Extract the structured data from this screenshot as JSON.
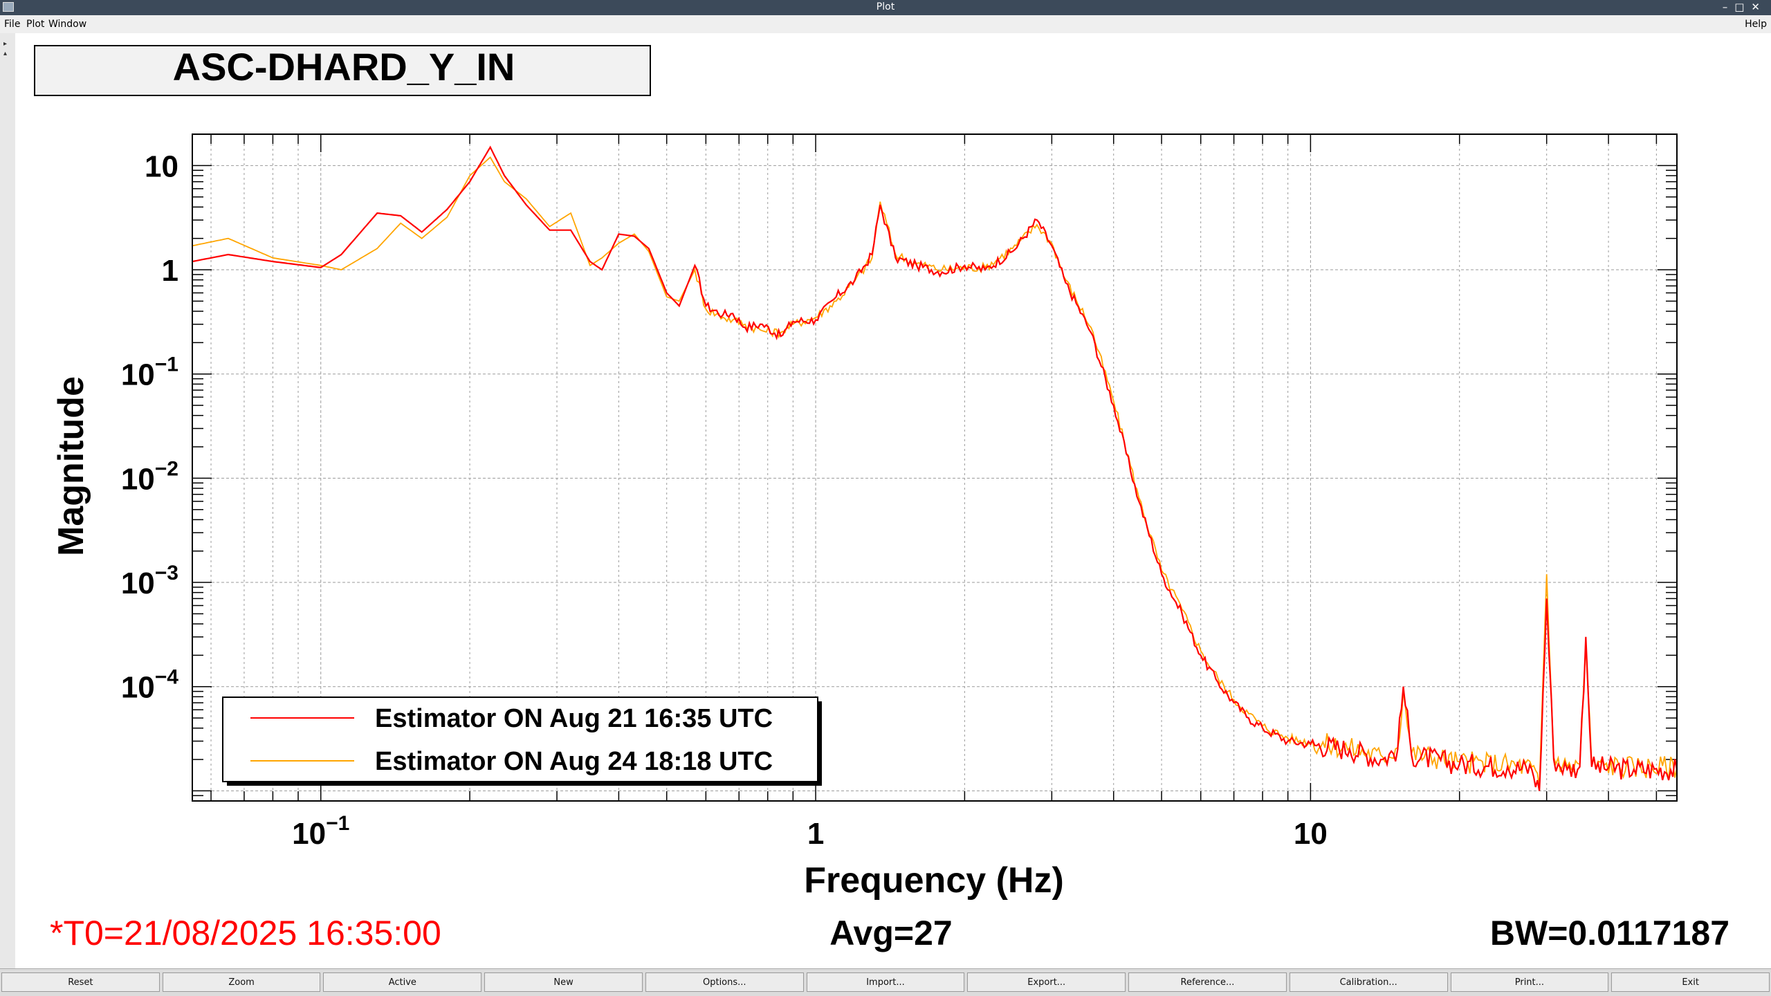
{
  "window": {
    "title": "Plot",
    "controls": "–□✕"
  },
  "menu": {
    "file": "File",
    "plot": "Plot",
    "window": "Window",
    "help": "Help"
  },
  "footer": {
    "buttons": [
      "Reset",
      "Zoom",
      "Active",
      "New",
      "Options...",
      "Import...",
      "Export...",
      "Reference...",
      "Calibration...",
      "Print...",
      "Exit"
    ]
  },
  "colors": {
    "series_red": "#ff0000",
    "series_orange": "#ffa500",
    "status_red": "#ff0000"
  },
  "chart_data": {
    "type": "line",
    "title": "ASC-DHARD_Y_IN",
    "xlabel": "Frequency (Hz)",
    "ylabel": "Magnitude",
    "xscale": "log",
    "yscale": "log",
    "xlim": [
      0.055,
      55
    ],
    "ylim": [
      8e-06,
      20
    ],
    "grid": true,
    "legend_position": "bottom-left",
    "x_ticks": [
      {
        "value": 0.1,
        "base": "10",
        "exp": "−1"
      },
      {
        "value": 1,
        "base": "1",
        "exp": ""
      },
      {
        "value": 10,
        "base": "10",
        "exp": ""
      }
    ],
    "y_ticks": [
      {
        "value": 10,
        "base": "10",
        "exp": ""
      },
      {
        "value": 1,
        "base": "1",
        "exp": ""
      },
      {
        "value": 0.1,
        "base": "10",
        "exp": "−1"
      },
      {
        "value": 0.01,
        "base": "10",
        "exp": "−2"
      },
      {
        "value": 0.001,
        "base": "10",
        "exp": "−3"
      },
      {
        "value": 0.0001,
        "base": "10",
        "exp": "−4"
      }
    ],
    "series": [
      {
        "name": "Estimator ON Aug 21 16:35 UTC",
        "color": "#ff0000",
        "x": [
          0.055,
          0.065,
          0.08,
          0.1,
          0.11,
          0.13,
          0.145,
          0.16,
          0.18,
          0.2,
          0.22,
          0.235,
          0.26,
          0.29,
          0.32,
          0.35,
          0.37,
          0.4,
          0.43,
          0.46,
          0.5,
          0.53,
          0.57,
          0.6,
          0.65,
          0.68,
          0.72,
          0.78,
          0.85,
          0.9,
          1.0,
          1.1,
          1.2,
          1.3,
          1.35,
          1.45,
          1.6,
          1.8,
          2.0,
          2.2,
          2.5,
          2.8,
          3.0,
          3.2,
          3.6,
          4.0,
          4.5,
          5.0,
          5.5,
          6.0,
          6.5,
          7.0,
          7.5,
          8.0,
          9.0,
          10.0,
          12.0,
          14.0,
          15.0,
          15.4,
          16.0,
          20.0,
          25.0,
          28.0,
          29.0,
          30.0,
          31.0,
          33.0,
          35.0,
          36.0,
          37.0,
          45.0,
          55.0
        ],
        "y": [
          1.2,
          1.4,
          1.2,
          1.05,
          1.4,
          3.5,
          3.3,
          2.3,
          3.8,
          7.0,
          15.0,
          8.0,
          4.2,
          2.4,
          2.4,
          1.2,
          1.0,
          2.2,
          2.1,
          1.6,
          0.6,
          0.45,
          1.1,
          0.45,
          0.37,
          0.38,
          0.28,
          0.3,
          0.23,
          0.32,
          0.33,
          0.55,
          0.8,
          1.4,
          4.2,
          1.3,
          1.1,
          0.95,
          1.1,
          1.0,
          1.5,
          3.0,
          1.7,
          0.75,
          0.25,
          0.05,
          0.006,
          0.0012,
          0.0005,
          0.0002,
          0.00011,
          7e-05,
          5e-05,
          4e-05,
          3e-05,
          2.8e-05,
          2.5e-05,
          2e-05,
          2.5e-05,
          0.0001,
          2.2e-05,
          1.8e-05,
          1.7e-05,
          1.6e-05,
          1e-05,
          0.0007,
          2e-05,
          1.6e-05,
          1.7e-05,
          0.0003,
          1.7e-05,
          1.6e-05,
          1.6e-05
        ]
      },
      {
        "name": "Estimator ON Aug 24 18:18 UTC",
        "color": "#ffa500",
        "x": [
          0.055,
          0.065,
          0.08,
          0.1,
          0.11,
          0.13,
          0.145,
          0.16,
          0.18,
          0.2,
          0.22,
          0.235,
          0.26,
          0.29,
          0.32,
          0.35,
          0.37,
          0.4,
          0.43,
          0.46,
          0.5,
          0.53,
          0.57,
          0.6,
          0.65,
          0.68,
          0.72,
          0.78,
          0.85,
          0.9,
          1.0,
          1.1,
          1.2,
          1.3,
          1.35,
          1.45,
          1.6,
          1.8,
          2.0,
          2.2,
          2.5,
          2.8,
          3.0,
          3.2,
          3.6,
          4.0,
          4.5,
          5.0,
          5.5,
          6.0,
          6.5,
          7.0,
          7.5,
          8.0,
          9.0,
          10.0,
          12.0,
          14.0,
          15.0,
          15.4,
          16.0,
          20.0,
          25.0,
          28.0,
          29.0,
          30.0,
          31.0,
          33.0,
          35.0,
          36.0,
          37.0,
          45.0,
          55.0
        ],
        "y": [
          1.7,
          2.0,
          1.3,
          1.1,
          1.0,
          1.6,
          2.8,
          2.0,
          3.2,
          8.0,
          12.0,
          7.0,
          4.8,
          2.6,
          3.5,
          1.1,
          1.3,
          1.8,
          2.2,
          1.5,
          0.55,
          0.5,
          1.0,
          0.42,
          0.35,
          0.33,
          0.3,
          0.26,
          0.25,
          0.3,
          0.35,
          0.5,
          0.78,
          1.3,
          4.5,
          1.4,
          1.15,
          1.0,
          1.05,
          1.05,
          1.6,
          2.7,
          1.8,
          0.8,
          0.28,
          0.055,
          0.0065,
          0.0013,
          0.00055,
          0.00022,
          0.00012,
          7.5e-05,
          5.5e-05,
          4.2e-05,
          3.2e-05,
          2.9e-05,
          2.6e-05,
          2.1e-05,
          2.6e-05,
          9e-05,
          2.3e-05,
          1.9e-05,
          1.8e-05,
          1.7e-05,
          1.1e-05,
          0.0012,
          2.1e-05,
          1.7e-05,
          1.8e-05,
          0.00025,
          1.8e-05,
          1.7e-05,
          1.7e-05
        ]
      }
    ],
    "annotations": {
      "t0": "*T0=21/08/2025 16:35:00",
      "avg": "Avg=27",
      "bw": "BW=0.0117187"
    }
  }
}
